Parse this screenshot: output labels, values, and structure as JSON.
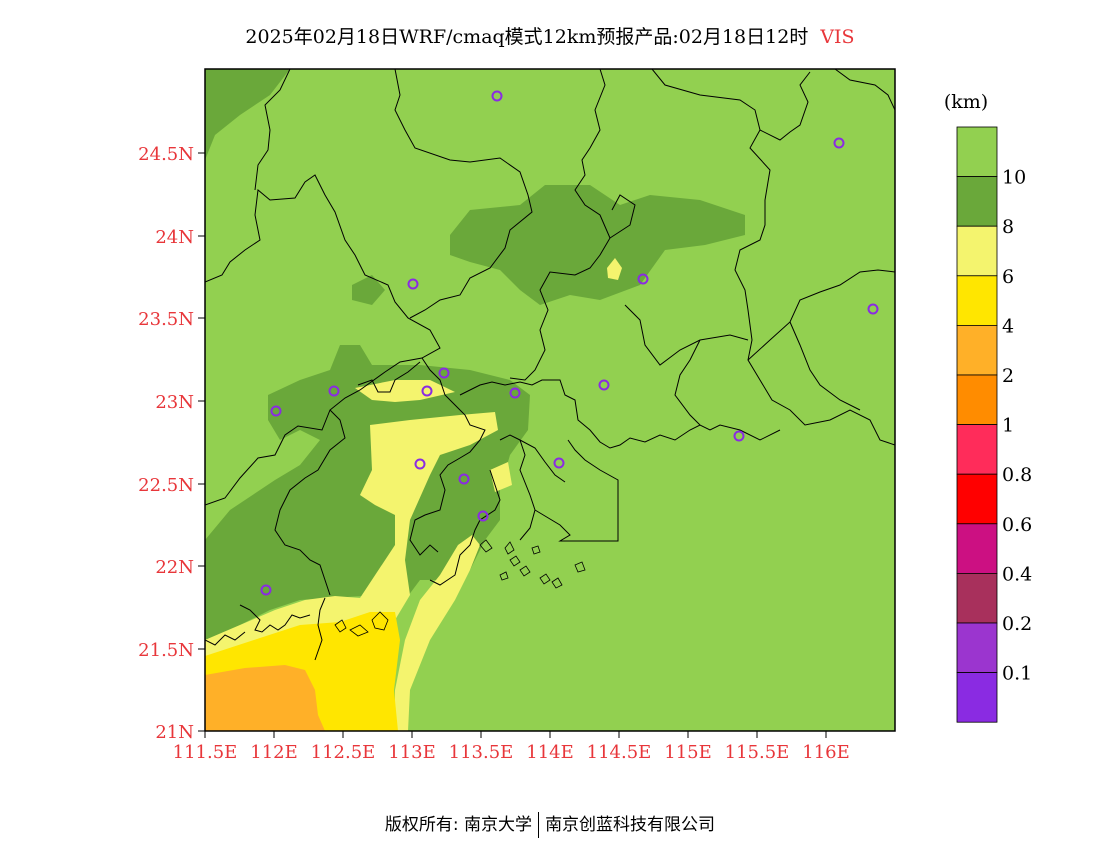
{
  "title": {
    "main": "2025年02月18日WRF/cmaq模式12km预报产品:02月18日12时",
    "variable": "VIS"
  },
  "axes": {
    "lat_ticks": [
      "24.5N",
      "24N",
      "23.5N",
      "23N",
      "22.5N",
      "22N",
      "21.5N",
      "21N"
    ],
    "lon_ticks": [
      "111.5E",
      "112E",
      "112.5E",
      "113E",
      "113.5E",
      "114E",
      "114.5E",
      "115E",
      "115.5E",
      "116E"
    ]
  },
  "colorbar": {
    "unit": "(km)",
    "labels": [
      "10",
      "8",
      "6",
      "4",
      "2",
      "1",
      "0.8",
      "0.6",
      "0.4",
      "0.2",
      "0.1"
    ],
    "colors": [
      "#92d050",
      "#6aa83a",
      "#f4f46e",
      "#ffe600",
      "#ffb028",
      "#ff8c00",
      "#ff2c5a",
      "#ff0000",
      "#cc1082",
      "#a8305c",
      "#9b35cf",
      "#8a2be2"
    ]
  },
  "stations_icon": "station-circle-icon",
  "footer": {
    "left": "版权所有: 南京大学",
    "right": "南京创蓝科技有限公司"
  }
}
